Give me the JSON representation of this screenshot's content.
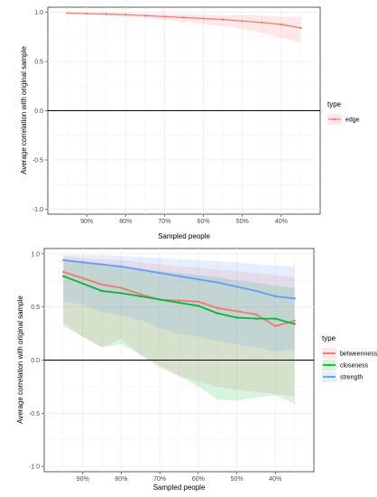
{
  "chart_data": [
    {
      "type": "line",
      "xlabel": "Sampled people",
      "ylabel": "Average correlation with original sample",
      "x_tick_labels": [
        "90%",
        "80%",
        "70%",
        "60%",
        "50%",
        "40%"
      ],
      "x_tick_values": [
        90,
        80,
        70,
        60,
        50,
        40
      ],
      "y_tick_labels": [
        "1.0",
        "0.5",
        "0.0",
        "-0.5",
        "-1.0"
      ],
      "y_tick_values": [
        1.0,
        0.5,
        0.0,
        -0.5,
        -1.0
      ],
      "xlim": [
        100,
        30
      ],
      "ylim": [
        -1.05,
        1.05
      ],
      "reference_line": 0,
      "grid": true,
      "legend": {
        "title": "type",
        "placement": "right"
      },
      "x": [
        95,
        90,
        85,
        80,
        75,
        70,
        65,
        60,
        55,
        50,
        45,
        40,
        35
      ],
      "series": [
        {
          "name": "edge",
          "color": "#F8766D",
          "values": [
            0.99,
            0.985,
            0.98,
            0.975,
            0.965,
            0.955,
            0.945,
            0.935,
            0.925,
            0.91,
            0.895,
            0.875,
            0.84
          ],
          "lower": [
            0.985,
            0.975,
            0.965,
            0.955,
            0.94,
            0.92,
            0.9,
            0.88,
            0.86,
            0.83,
            0.79,
            0.74,
            0.69
          ],
          "upper": [
            0.995,
            0.99,
            0.99,
            0.99,
            0.985,
            0.985,
            0.98,
            0.975,
            0.97,
            0.97,
            0.965,
            0.955,
            0.95
          ]
        }
      ]
    },
    {
      "type": "line",
      "xlabel": "Sampled people",
      "ylabel": "Average correlation with original sample",
      "x_tick_labels": [
        "90%",
        "80%",
        "70%",
        "60%",
        "50%",
        "40%"
      ],
      "x_tick_values": [
        90,
        80,
        70,
        60,
        50,
        40
      ],
      "y_tick_labels": [
        "1.0",
        "0.5",
        "0.0",
        "-0.5",
        "-1.0"
      ],
      "y_tick_values": [
        1.0,
        0.5,
        0.0,
        -0.5,
        -1.0
      ],
      "xlim": [
        100,
        30
      ],
      "ylim": [
        -1.05,
        1.05
      ],
      "reference_line": 0,
      "grid": true,
      "legend": {
        "title": "type",
        "placement": "right"
      },
      "x": [
        95,
        90,
        85,
        80,
        75,
        70,
        65,
        60,
        55,
        50,
        45,
        40,
        35
      ],
      "series": [
        {
          "name": "betweenness",
          "color": "#F8766D",
          "values": [
            0.83,
            0.77,
            0.71,
            0.68,
            0.62,
            0.57,
            0.56,
            0.55,
            0.49,
            0.46,
            0.43,
            0.32,
            0.37
          ],
          "lower": [
            0.35,
            0.22,
            0.12,
            0.2,
            0.05,
            -0.08,
            -0.15,
            -0.2,
            -0.25,
            -0.28,
            -0.3,
            -0.32,
            -0.34
          ],
          "upper": [
            0.98,
            0.96,
            0.95,
            0.94,
            0.92,
            0.9,
            0.88,
            0.87,
            0.85,
            0.84,
            0.82,
            0.8,
            0.78
          ]
        },
        {
          "name": "closeness",
          "color": "#00BA38",
          "values": [
            0.79,
            0.72,
            0.65,
            0.63,
            0.6,
            0.57,
            0.54,
            0.51,
            0.44,
            0.4,
            0.39,
            0.39,
            0.34
          ],
          "lower": [
            0.32,
            0.22,
            0.12,
            0.15,
            0.05,
            -0.05,
            -0.15,
            -0.25,
            -0.37,
            -0.38,
            -0.35,
            -0.33,
            -0.41
          ],
          "upper": [
            0.95,
            0.93,
            0.9,
            0.88,
            0.86,
            0.84,
            0.82,
            0.8,
            0.78,
            0.75,
            0.73,
            0.7,
            0.68
          ]
        },
        {
          "name": "strength",
          "color": "#619CFF",
          "values": [
            0.94,
            0.92,
            0.9,
            0.88,
            0.85,
            0.82,
            0.79,
            0.76,
            0.73,
            0.69,
            0.65,
            0.6,
            0.58
          ],
          "lower": [
            0.55,
            0.52,
            0.45,
            0.42,
            0.38,
            0.3,
            0.25,
            0.22,
            0.18,
            0.15,
            0.12,
            0.08,
            0.1
          ],
          "upper": [
            0.99,
            0.99,
            0.99,
            0.98,
            0.97,
            0.96,
            0.95,
            0.94,
            0.93,
            0.92,
            0.9,
            0.89,
            0.88
          ]
        }
      ]
    }
  ]
}
